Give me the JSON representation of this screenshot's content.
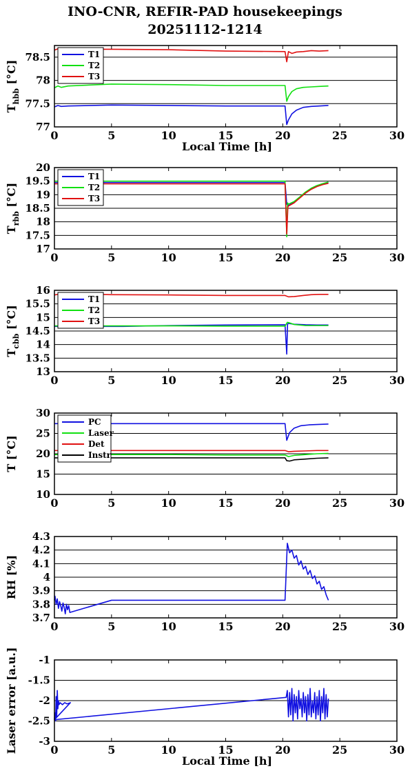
{
  "page": {
    "title_line1": "INO-CNR, REFIR-PAD housekeepings",
    "title_line2": "20251112-1214"
  },
  "colors": {
    "blue": "#1010e0",
    "green": "#10e010",
    "red": "#e01010",
    "black": "#000000"
  },
  "chart_data": [
    {
      "id": "hbb",
      "type": "line",
      "ylabel_main": "T",
      "ylabel_sub": "hbb",
      "ylabel_unit": "[°C]",
      "xlabel": "Local Time [h]",
      "xlim": [
        0,
        30
      ],
      "ylim": [
        77,
        78.75
      ],
      "xticks": [
        0,
        5,
        10,
        15,
        20,
        25,
        30
      ],
      "yticks": [
        77,
        77.5,
        78,
        78.5
      ],
      "ytick_labels": [
        "77",
        "77.5",
        "78",
        "78.5"
      ],
      "grid": "horizontal",
      "legend": "top-left",
      "series": [
        {
          "name": "T1",
          "color": "blue",
          "x": [
            0,
            0.3,
            0.6,
            1.2,
            5,
            10,
            15,
            20.2,
            20.35,
            20.5,
            20.8,
            21.2,
            21.8,
            22.5,
            23.2,
            24
          ],
          "y": [
            77.43,
            77.46,
            77.44,
            77.45,
            77.47,
            77.46,
            77.45,
            77.45,
            77.05,
            77.15,
            77.28,
            77.36,
            77.42,
            77.44,
            77.45,
            77.46
          ]
        },
        {
          "name": "T2",
          "color": "green",
          "x": [
            0,
            0.3,
            0.6,
            1.2,
            5,
            10,
            15,
            20.2,
            20.35,
            20.5,
            20.8,
            21.2,
            21.8,
            22.5,
            23.2,
            24
          ],
          "y": [
            77.84,
            77.88,
            77.85,
            77.88,
            77.92,
            77.91,
            77.89,
            77.89,
            77.55,
            77.65,
            77.76,
            77.82,
            77.85,
            77.86,
            77.87,
            77.88
          ]
        },
        {
          "name": "T3",
          "color": "red",
          "x": [
            0,
            0.3,
            0.6,
            1.2,
            5,
            10,
            15,
            20.2,
            20.35,
            20.5,
            20.8,
            21.2,
            21.8,
            22.5,
            23.2,
            24
          ],
          "y": [
            78.65,
            78.68,
            78.66,
            78.67,
            78.67,
            78.66,
            78.63,
            78.62,
            78.4,
            78.62,
            78.58,
            78.61,
            78.62,
            78.64,
            78.63,
            78.64
          ]
        }
      ]
    },
    {
      "id": "rbb",
      "type": "line",
      "ylabel_main": "T",
      "ylabel_sub": "rbb",
      "ylabel_unit": "[°C]",
      "xlabel": "",
      "xlim": [
        0,
        30
      ],
      "ylim": [
        17,
        20
      ],
      "xticks": [
        0,
        5,
        10,
        15,
        20,
        25,
        30
      ],
      "yticks": [
        17,
        17.5,
        18,
        18.5,
        19,
        19.5,
        20
      ],
      "ytick_labels": [
        "17",
        "17.5",
        "18",
        "18.5",
        "19",
        "19.5",
        "20"
      ],
      "grid": "horizontal",
      "legend": "top-left",
      "series": [
        {
          "name": "T1",
          "color": "blue",
          "x": [
            0,
            5,
            10,
            15,
            20.2,
            20.35,
            20.5,
            21,
            21.5,
            22,
            22.5,
            23,
            23.5,
            24
          ],
          "y": [
            19.45,
            19.45,
            19.45,
            19.45,
            19.45,
            18.65,
            18.6,
            18.72,
            18.9,
            19.08,
            19.22,
            19.32,
            19.39,
            19.45
          ]
        },
        {
          "name": "T2",
          "color": "green",
          "x": [
            0,
            5,
            10,
            15,
            20.2,
            20.35,
            20.42,
            20.5,
            21,
            21.5,
            22,
            22.5,
            23,
            23.5,
            24
          ],
          "y": [
            19.5,
            19.5,
            19.5,
            19.5,
            19.5,
            17.45,
            18.7,
            18.65,
            18.75,
            18.92,
            19.1,
            19.24,
            19.34,
            19.41,
            19.47
          ]
        },
        {
          "name": "T3",
          "color": "red",
          "x": [
            0,
            5,
            10,
            15,
            20.2,
            20.35,
            20.45,
            20.5,
            21,
            21.5,
            22,
            22.5,
            23,
            23.5,
            24
          ],
          "y": [
            19.4,
            19.4,
            19.4,
            19.4,
            19.4,
            17.55,
            18.55,
            18.58,
            18.7,
            18.88,
            19.06,
            19.2,
            19.3,
            19.37,
            19.42
          ]
        }
      ]
    },
    {
      "id": "cbb",
      "type": "line",
      "ylabel_main": "T",
      "ylabel_sub": "cbb",
      "ylabel_unit": "[°C]",
      "xlabel": "",
      "xlim": [
        0,
        30
      ],
      "ylim": [
        13,
        16
      ],
      "xticks": [
        0,
        5,
        10,
        15,
        20,
        25,
        30
      ],
      "yticks": [
        13,
        13.5,
        14,
        14.5,
        15,
        15.5,
        16
      ],
      "ytick_labels": [
        "13",
        "13.5",
        "14",
        "14.5",
        "15",
        "15.5",
        "16"
      ],
      "grid": "horizontal",
      "legend": "top-left",
      "series": [
        {
          "name": "T1",
          "color": "blue",
          "x": [
            0,
            5,
            6,
            10,
            15,
            20.2,
            20.35,
            20.42,
            20.5,
            21,
            22,
            23,
            24
          ],
          "y": [
            14.67,
            14.67,
            14.67,
            14.7,
            14.72,
            14.73,
            13.65,
            14.75,
            14.78,
            14.75,
            14.73,
            14.72,
            14.72
          ]
        },
        {
          "name": "T2",
          "color": "green",
          "x": [
            0,
            5,
            10,
            15,
            20.2,
            20.4,
            20.6,
            21,
            22,
            23,
            24
          ],
          "y": [
            14.69,
            14.69,
            14.69,
            14.68,
            14.68,
            14.82,
            14.8,
            14.74,
            14.7,
            14.7,
            14.7
          ]
        },
        {
          "name": "T3",
          "color": "red",
          "x": [
            0,
            0.6,
            5,
            10,
            15,
            20.2,
            20.5,
            21,
            21.8,
            22.5,
            23.2,
            24
          ],
          "y": [
            15.83,
            15.87,
            15.84,
            15.83,
            15.81,
            15.81,
            15.76,
            15.77,
            15.81,
            15.84,
            15.85,
            15.85
          ]
        }
      ]
    },
    {
      "id": "temps",
      "type": "line",
      "ylabel_main": "T [°C]",
      "ylabel_sub": "",
      "ylabel_unit": "",
      "xlabel": "",
      "xlim": [
        0,
        30
      ],
      "ylim": [
        10,
        30
      ],
      "xticks": [
        0,
        5,
        10,
        15,
        20,
        25,
        30
      ],
      "yticks": [
        10,
        15,
        20,
        25,
        30
      ],
      "ytick_labels": [
        "10",
        "15",
        "20",
        "25",
        "30"
      ],
      "grid": "horizontal",
      "legend": "top-left",
      "series": [
        {
          "name": "PC",
          "color": "blue",
          "x": [
            0,
            5,
            10,
            15,
            20.2,
            20.35,
            20.6,
            21,
            21.6,
            22.3,
            23,
            24
          ],
          "y": [
            27.4,
            27.4,
            27.4,
            27.4,
            27.4,
            23.3,
            25.2,
            26.3,
            26.9,
            27.1,
            27.2,
            27.3
          ]
        },
        {
          "name": "Laser",
          "color": "green",
          "x": [
            0,
            5,
            10,
            15,
            20.2,
            20.5,
            21,
            22,
            23,
            24
          ],
          "y": [
            19.8,
            19.8,
            19.8,
            19.7,
            19.7,
            19.3,
            19.6,
            19.8,
            20.0,
            20.1
          ]
        },
        {
          "name": "Det",
          "color": "red",
          "x": [
            0,
            5,
            10,
            15,
            20.2,
            20.5,
            21,
            22,
            23,
            24
          ],
          "y": [
            20.8,
            20.8,
            20.8,
            20.8,
            20.8,
            20.5,
            20.6,
            20.7,
            20.8,
            20.8
          ]
        },
        {
          "name": "Instr",
          "color": "black",
          "x": [
            0,
            5,
            10,
            15,
            20.2,
            20.35,
            20.6,
            21,
            22,
            23,
            24
          ],
          "y": [
            19.0,
            19.0,
            19.0,
            19.0,
            19.0,
            18.3,
            18.2,
            18.5,
            18.7,
            18.9,
            19.0
          ]
        }
      ]
    },
    {
      "id": "rh",
      "type": "line",
      "ylabel_main": "RH [%]",
      "ylabel_sub": "",
      "ylabel_unit": "",
      "xlabel": "",
      "xlim": [
        0,
        30
      ],
      "ylim": [
        3.7,
        4.3
      ],
      "xticks": [
        0,
        5,
        10,
        15,
        20,
        25,
        30
      ],
      "yticks": [
        3.7,
        3.8,
        3.9,
        4.0,
        4.1,
        4.2,
        4.3
      ],
      "ytick_labels": [
        "3.7",
        "3.8",
        "3.9",
        "4",
        "4.1",
        "4.2",
        "4.3"
      ],
      "grid": "horizontal",
      "legend": "none",
      "series": [
        {
          "name": "",
          "color": "blue",
          "x": [
            0,
            0.05,
            0.15,
            0.25,
            0.35,
            0.45,
            0.55,
            0.65,
            0.75,
            0.85,
            0.95,
            1.05,
            1.15,
            1.25,
            1.35,
            5,
            10,
            15,
            20.2,
            20.4,
            20.6,
            20.8,
            21.0,
            21.2,
            21.4,
            21.6,
            21.8,
            22.0,
            22.2,
            22.4,
            22.6,
            22.8,
            23.0,
            23.2,
            23.4,
            23.6,
            23.8,
            24.0
          ],
          "y": [
            3.83,
            3.86,
            3.8,
            3.84,
            3.77,
            3.82,
            3.79,
            3.75,
            3.81,
            3.78,
            3.73,
            3.8,
            3.76,
            3.79,
            3.74,
            3.83,
            3.83,
            3.83,
            3.83,
            4.25,
            4.18,
            4.2,
            4.14,
            4.16,
            4.09,
            4.12,
            4.06,
            4.08,
            4.02,
            4.05,
            3.99,
            4.01,
            3.95,
            3.97,
            3.91,
            3.93,
            3.87,
            3.83
          ]
        }
      ]
    },
    {
      "id": "laser",
      "type": "line",
      "ylabel_main": "Laser error [a.u.]",
      "ylabel_sub": "",
      "ylabel_unit": "",
      "xlabel": "Local Time [h]",
      "xlim": [
        0,
        30
      ],
      "ylim": [
        -3,
        -1
      ],
      "xticks": [
        0,
        5,
        10,
        15,
        20,
        25,
        30
      ],
      "yticks": [
        -3,
        -2.5,
        -2,
        -1.5,
        -1
      ],
      "ytick_labels": [
        "-3",
        "-2.5",
        "-2",
        "-1.5",
        "-1"
      ],
      "grid": "horizontal",
      "legend": "none",
      "series": [
        {
          "name": "",
          "color": "blue",
          "x": [
            0,
            0.05,
            0.1,
            0.15,
            0.2,
            0.25,
            0.3,
            0.35,
            0.4,
            0.5,
            0.7,
            0.9,
            1.1,
            1.4,
            0.0,
            20.3,
            20.4,
            20.5,
            20.6,
            20.7,
            20.8,
            20.9,
            21.0,
            21.1,
            21.2,
            21.3,
            21.4,
            21.5,
            21.6,
            21.7,
            21.8,
            21.9,
            22.0,
            22.1,
            22.2,
            22.3,
            22.4,
            22.5,
            22.6,
            22.7,
            22.8,
            22.9,
            23.0,
            23.1,
            23.2,
            23.3,
            23.4,
            23.5,
            23.6,
            23.7,
            23.8,
            23.9,
            24.0
          ],
          "y": [
            -2.45,
            -2.3,
            -2.5,
            -1.9,
            -2.4,
            -1.75,
            -2.2,
            -2.0,
            -2.1,
            -2.05,
            -2.1,
            -2.05,
            -2.08,
            -2.05,
            -2.47,
            -1.92,
            -1.75,
            -2.4,
            -1.8,
            -2.35,
            -1.7,
            -2.5,
            -1.85,
            -2.3,
            -1.9,
            -2.45,
            -1.75,
            -2.2,
            -1.95,
            -2.4,
            -1.8,
            -2.3,
            -1.9,
            -2.5,
            -1.85,
            -2.35,
            -1.7,
            -2.4,
            -2.0,
            -2.3,
            -1.8,
            -2.45,
            -1.9,
            -2.35,
            -1.75,
            -2.5,
            -1.9,
            -2.3,
            -1.7,
            -2.45,
            -1.85,
            -2.4,
            -1.95
          ]
        }
      ]
    }
  ]
}
